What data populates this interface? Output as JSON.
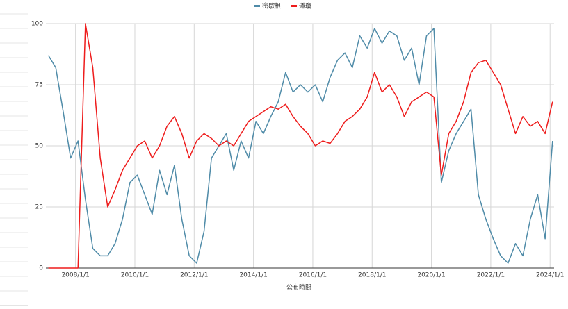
{
  "chart_data": {
    "type": "line",
    "x_label": "公布時間",
    "x": [
      "2007/2/1",
      "2007/5/1",
      "2007/8/1",
      "2007/11/1",
      "2008/2/1",
      "2008/5/1",
      "2008/8/1",
      "2008/11/1",
      "2009/2/1",
      "2009/5/1",
      "2009/8/1",
      "2009/11/1",
      "2010/2/1",
      "2010/5/1",
      "2010/8/1",
      "2010/11/1",
      "2011/2/1",
      "2011/5/1",
      "2011/8/1",
      "2011/11/1",
      "2012/2/1",
      "2012/5/1",
      "2012/8/1",
      "2012/11/1",
      "2013/2/1",
      "2013/5/1",
      "2013/8/1",
      "2013/11/1",
      "2014/2/1",
      "2014/5/1",
      "2014/8/1",
      "2014/11/1",
      "2015/2/1",
      "2015/5/1",
      "2015/8/1",
      "2015/11/1",
      "2016/2/1",
      "2016/5/1",
      "2016/8/1",
      "2016/11/1",
      "2017/2/1",
      "2017/5/1",
      "2017/8/1",
      "2017/11/1",
      "2018/2/1",
      "2018/5/1",
      "2018/8/1",
      "2018/11/1",
      "2019/2/1",
      "2019/5/1",
      "2019/8/1",
      "2019/11/1",
      "2020/2/1",
      "2020/5/1",
      "2020/8/1",
      "2020/11/1",
      "2021/2/1",
      "2021/5/1",
      "2021/8/1",
      "2021/11/1",
      "2022/2/1",
      "2022/5/1",
      "2022/8/1",
      "2022/11/1",
      "2023/2/1",
      "2023/5/1",
      "2023/8/1",
      "2023/11/1",
      "2024/2/1"
    ],
    "series": [
      {
        "name": "密歇根",
        "color": "#4f8ba8",
        "values": [
          87,
          82,
          64,
          45,
          52,
          28,
          8,
          5,
          5,
          10,
          20,
          35,
          38,
          30,
          22,
          40,
          30,
          42,
          20,
          5,
          2,
          15,
          45,
          50,
          55,
          40,
          52,
          45,
          60,
          55,
          62,
          68,
          80,
          72,
          75,
          72,
          75,
          68,
          78,
          85,
          88,
          82,
          95,
          90,
          98,
          92,
          97,
          95,
          85,
          90,
          75,
          95,
          98,
          35,
          48,
          55,
          60,
          65,
          30,
          20,
          12,
          5,
          2,
          10,
          5,
          20,
          30,
          12,
          52
        ]
      },
      {
        "name": "道瓊",
        "color": "#ee1c1c",
        "values": [
          0,
          0,
          0,
          0,
          0,
          100,
          82,
          45,
          25,
          32,
          40,
          45,
          50,
          52,
          45,
          50,
          58,
          62,
          55,
          45,
          52,
          55,
          53,
          50,
          52,
          50,
          55,
          60,
          62,
          64,
          66,
          65,
          67,
          62,
          58,
          55,
          50,
          52,
          51,
          55,
          60,
          62,
          65,
          70,
          80,
          72,
          75,
          70,
          62,
          68,
          70,
          72,
          70,
          38,
          55,
          60,
          68,
          80,
          84,
          85,
          80,
          75,
          65,
          55,
          62,
          58,
          60,
          55,
          68
        ]
      }
    ],
    "xlim": [
      "2007/1/1",
      "2024/2/20"
    ],
    "xticks": [
      "2008/1/1",
      "2010/1/1",
      "2012/1/1",
      "2014/1/1",
      "2016/1/1",
      "2018/1/1",
      "2020/1/1",
      "2022/1/1",
      "2024/1/1"
    ],
    "ylim": [
      0,
      100
    ],
    "yticks": [
      0,
      25,
      50,
      75,
      100
    ],
    "grid": true,
    "legend": "top"
  }
}
